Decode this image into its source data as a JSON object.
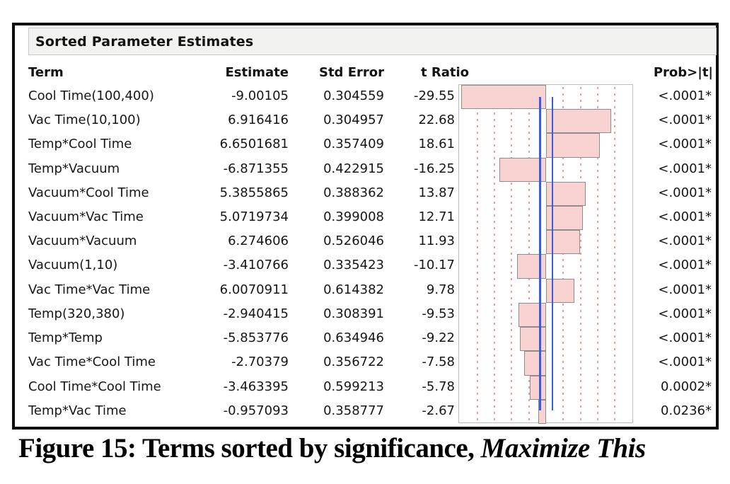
{
  "panel": {
    "title": "Sorted Parameter Estimates"
  },
  "table": {
    "headers": {
      "term": "Term",
      "estimate": "Estimate",
      "std_error": "Std Error",
      "t_ratio": "t Ratio",
      "prob": "Prob>|t|"
    },
    "rows": [
      {
        "term": "Cool Time(100,400)",
        "estimate": "-9.00105",
        "std_error": "0.304559",
        "t_ratio": "-29.55",
        "prob": "<.0001*"
      },
      {
        "term": "Vac Time(10,100)",
        "estimate": "6.916416",
        "std_error": "0.304957",
        "t_ratio": "22.68",
        "prob": "<.0001*"
      },
      {
        "term": "Temp*Cool Time",
        "estimate": "6.6501681",
        "std_error": "0.357409",
        "t_ratio": "18.61",
        "prob": "<.0001*"
      },
      {
        "term": "Temp*Vacuum",
        "estimate": "-6.871355",
        "std_error": "0.422915",
        "t_ratio": "-16.25",
        "prob": "<.0001*"
      },
      {
        "term": "Vacuum*Cool Time",
        "estimate": "5.3855865",
        "std_error": "0.388362",
        "t_ratio": "13.87",
        "prob": "<.0001*"
      },
      {
        "term": "Vacuum*Vac Time",
        "estimate": "5.0719734",
        "std_error": "0.399008",
        "t_ratio": "12.71",
        "prob": "<.0001*"
      },
      {
        "term": "Vacuum*Vacuum",
        "estimate": "6.274606",
        "std_error": "0.526046",
        "t_ratio": "11.93",
        "prob": "<.0001*"
      },
      {
        "term": "Vacuum(1,10)",
        "estimate": "-3.410766",
        "std_error": "0.335423",
        "t_ratio": "-10.17",
        "prob": "<.0001*"
      },
      {
        "term": "Vac Time*Vac Time",
        "estimate": "6.0070911",
        "std_error": "0.614382",
        "t_ratio": "9.78",
        "prob": "<.0001*"
      },
      {
        "term": "Temp(320,380)",
        "estimate": "-2.940415",
        "std_error": "0.308391",
        "t_ratio": "-9.53",
        "prob": "<.0001*"
      },
      {
        "term": "Temp*Temp",
        "estimate": "-5.853776",
        "std_error": "0.634946",
        "t_ratio": "-9.22",
        "prob": "<.0001*"
      },
      {
        "term": "Vac Time*Cool Time",
        "estimate": "-2.70379",
        "std_error": "0.356722",
        "t_ratio": "-7.58",
        "prob": "<.0001*"
      },
      {
        "term": "Cool Time*Cool Time",
        "estimate": "-3.463395",
        "std_error": "0.599213",
        "t_ratio": "-5.78",
        "prob": "0.0002*"
      },
      {
        "term": "Temp*Vac Time",
        "estimate": "-0.957093",
        "std_error": "0.358777",
        "t_ratio": "-2.67",
        "prob": "0.0236*"
      }
    ]
  },
  "chart_data": {
    "type": "bar",
    "orientation": "horizontal",
    "title": "t Ratio bar plot",
    "categories": [
      "Cool Time(100,400)",
      "Vac Time(10,100)",
      "Temp*Cool Time",
      "Temp*Vacuum",
      "Vacuum*Cool Time",
      "Vacuum*Vac Time",
      "Vacuum*Vacuum",
      "Vacuum(1,10)",
      "Vac Time*Vac Time",
      "Temp(320,380)",
      "Temp*Temp",
      "Vac Time*Cool Time",
      "Cool Time*Cool Time",
      "Temp*Vac Time"
    ],
    "values": [
      -29.55,
      22.68,
      18.61,
      -16.25,
      13.87,
      12.71,
      11.93,
      -10.17,
      9.78,
      -9.53,
      -9.22,
      -7.58,
      -5.78,
      -2.67
    ],
    "xlim": [
      -30,
      30
    ],
    "gridlines": [
      -24,
      -18,
      -12,
      -6,
      6,
      12,
      18,
      24
    ],
    "gridline_style": "dotted",
    "reference_lines": [
      -2.2,
      2.2
    ],
    "bar_fill": "#f9d2d2",
    "bar_border": "#8d8d8d",
    "gridline_color": "#f19b9b",
    "reference_line_color": "#3b5ce0",
    "legend": "none"
  },
  "caption": {
    "text": "Figure 15: Terms sorted by significance, ",
    "italic_text": "Maximize This"
  }
}
